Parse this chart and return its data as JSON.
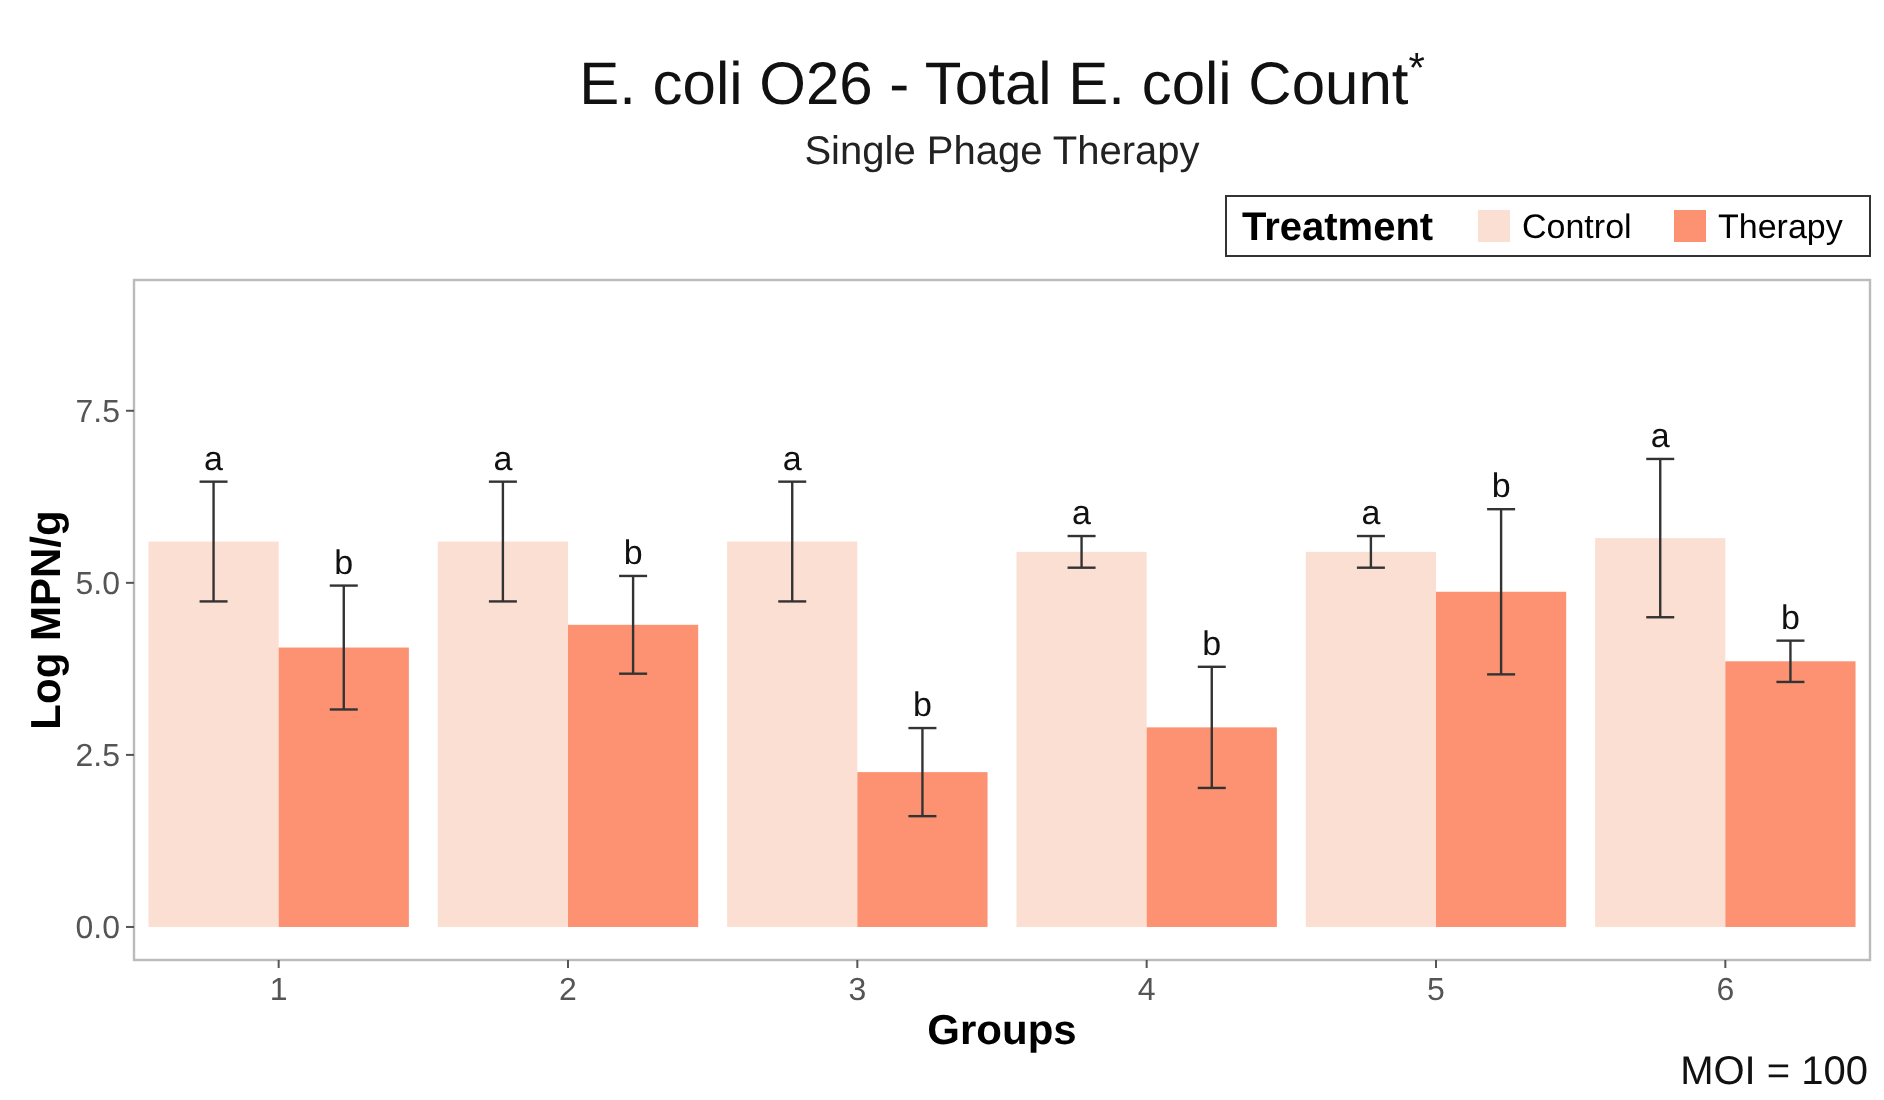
{
  "chart_data": {
    "type": "bar",
    "title": "E. coli O26 - Total E. coli Count$^{*}$",
    "subtitle": "Single Phage Therapy",
    "xlabel": "Groups",
    "ylabel": "Log MPN/g",
    "legend_title": "Treatment",
    "legend": "top right",
    "grid": false,
    "categories": [
      "1",
      "2",
      "3",
      "4",
      "5",
      "6"
    ],
    "series": [
      {
        "name": "Control",
        "color": "#fcdfd3",
        "values": [
          5.6,
          5.6,
          5.6,
          5.45,
          5.45,
          5.65
        ],
        "errors": [
          0.87,
          0.87,
          0.87,
          0.23,
          0.23,
          1.15
        ],
        "value_labels": [
          "a",
          "a",
          "a",
          "a",
          "a",
          "a"
        ]
      },
      {
        "name": "Therapy",
        "color": "#fc9272",
        "values": [
          4.06,
          4.39,
          2.25,
          2.9,
          4.87,
          3.86
        ],
        "errors": [
          0.9,
          0.71,
          0.64,
          0.88,
          1.2,
          0.3
        ],
        "value_labels": [
          "b",
          "b",
          "b",
          "b",
          "b",
          "b"
        ]
      }
    ],
    "ylim": [
      -0.48,
      9.4
    ],
    "yticks": [
      {
        "value": 0,
        "label": "0.0"
      },
      {
        "value": 2.5,
        "label": "2.5"
      },
      {
        "value": 5,
        "label": "5.0"
      },
      {
        "value": 7.5,
        "label": "7.5"
      }
    ],
    "annotations": [
      "MOI = 100"
    ]
  }
}
